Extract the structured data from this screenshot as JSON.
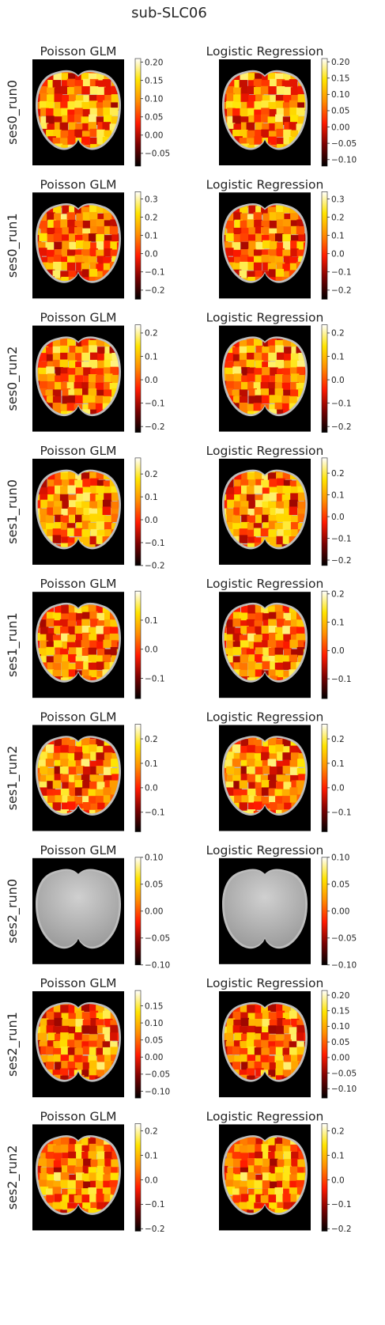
{
  "title": "sub-SLC06",
  "colors": {
    "background": "#000000",
    "cmap": [
      "#000000",
      "#7a0000",
      "#ff1a00",
      "#ff8c00",
      "#ffe400",
      "#ffffff"
    ],
    "inactive_brain": [
      "#d0d0d0",
      "#9a9a9a"
    ],
    "brain_rim": "#bdbdbd"
  },
  "chart_data": {
    "type": "heatmap",
    "title": "sub-SLC06",
    "columns": [
      "Poisson GLM",
      "Logistic Regression"
    ],
    "rows": [
      {
        "label": "ses0_run0",
        "panels": [
          {
            "title": "Poisson GLM",
            "vmin": -0.085,
            "vmax": 0.21,
            "ticks": [
              -0.05,
              0.0,
              0.05,
              0.1,
              0.15,
              0.2
            ],
            "tick_labels": [
              "−0.05",
              "0.00",
              "0.05",
              "0.10",
              "0.15",
              "0.20"
            ]
          },
          {
            "title": "Logistic Regression",
            "vmin": -0.12,
            "vmax": 0.21,
            "ticks": [
              -0.1,
              -0.05,
              0.0,
              0.05,
              0.1,
              0.15,
              0.2
            ],
            "tick_labels": [
              "−0.10",
              "−0.05",
              "0.00",
              "0.05",
              "0.10",
              "0.15",
              "0.20"
            ]
          }
        ]
      },
      {
        "label": "ses0_run1",
        "panels": [
          {
            "title": "Poisson GLM",
            "vmin": -0.25,
            "vmax": 0.34,
            "ticks": [
              -0.2,
              -0.1,
              0.0,
              0.1,
              0.2,
              0.3
            ],
            "tick_labels": [
              "−0.2",
              "−0.1",
              "0.0",
              "0.1",
              "0.2",
              "0.3"
            ]
          },
          {
            "title": "Logistic Regression",
            "vmin": -0.25,
            "vmax": 0.34,
            "ticks": [
              -0.2,
              -0.1,
              0.0,
              0.1,
              0.2,
              0.3
            ],
            "tick_labels": [
              "−0.2",
              "−0.1",
              "0.0",
              "0.1",
              "0.2",
              "0.3"
            ]
          }
        ]
      },
      {
        "label": "ses0_run2",
        "panels": [
          {
            "title": "Poisson GLM",
            "vmin": -0.225,
            "vmax": 0.235,
            "ticks": [
              -0.2,
              -0.1,
              0.0,
              0.1,
              0.2
            ],
            "tick_labels": [
              "−0.2",
              "−0.1",
              "0.0",
              "0.1",
              "0.2"
            ]
          },
          {
            "title": "Logistic Regression",
            "vmin": -0.225,
            "vmax": 0.235,
            "ticks": [
              -0.2,
              -0.1,
              0.0,
              0.1,
              0.2
            ],
            "tick_labels": [
              "−0.2",
              "−0.1",
              "0.0",
              "0.1",
              "0.2"
            ]
          }
        ]
      },
      {
        "label": "ses1_run0",
        "panels": [
          {
            "title": "Poisson GLM",
            "vmin": -0.2,
            "vmax": 0.27,
            "ticks": [
              -0.2,
              -0.1,
              0.0,
              0.1,
              0.2
            ],
            "tick_labels": [
              "−0.2",
              "−0.1",
              "0.0",
              "0.1",
              "0.2"
            ]
          },
          {
            "title": "Logistic Regression",
            "vmin": -0.225,
            "vmax": 0.27,
            "ticks": [
              -0.2,
              -0.1,
              0.0,
              0.1,
              0.2
            ],
            "tick_labels": [
              "−0.2",
              "−0.1",
              "0.0",
              "0.1",
              "0.2"
            ]
          }
        ]
      },
      {
        "label": "ses1_run1",
        "panels": [
          {
            "title": "Poisson GLM",
            "vmin": -0.17,
            "vmax": 0.2,
            "ticks": [
              -0.1,
              0.0,
              0.1
            ],
            "tick_labels": [
              "−0.1",
              "0.0",
              "0.1"
            ]
          },
          {
            "title": "Logistic Regression",
            "vmin": -0.17,
            "vmax": 0.21,
            "ticks": [
              -0.1,
              0.0,
              0.1,
              0.2
            ],
            "tick_labels": [
              "−0.1",
              "0.0",
              "0.1",
              "0.2"
            ]
          }
        ]
      },
      {
        "label": "ses1_run2",
        "panels": [
          {
            "title": "Poisson GLM",
            "vmin": -0.18,
            "vmax": 0.26,
            "ticks": [
              -0.1,
              0.0,
              0.1,
              0.2
            ],
            "tick_labels": [
              "−0.1",
              "0.0",
              "0.1",
              "0.2"
            ]
          },
          {
            "title": "Logistic Regression",
            "vmin": -0.18,
            "vmax": 0.26,
            "ticks": [
              -0.1,
              0.0,
              0.1,
              0.2
            ],
            "tick_labels": [
              "−0.1",
              "0.0",
              "0.1",
              "0.2"
            ]
          }
        ]
      },
      {
        "label": "ses2_run0",
        "panels": [
          {
            "title": "Poisson GLM",
            "vmin": -0.1,
            "vmax": 0.1,
            "inactive": true,
            "ticks": [
              -0.1,
              -0.05,
              0.0,
              0.05,
              0.1
            ],
            "tick_labels": [
              "−0.10",
              "−0.05",
              "0.00",
              "0.05",
              "0.10"
            ]
          },
          {
            "title": "Logistic Regression",
            "vmin": -0.1,
            "vmax": 0.1,
            "inactive": true,
            "ticks": [
              -0.1,
              -0.05,
              0.0,
              0.05,
              0.1
            ],
            "tick_labels": [
              "−0.10",
              "−0.05",
              "0.00",
              "0.05",
              "0.10"
            ]
          }
        ]
      },
      {
        "label": "ses2_run1",
        "panels": [
          {
            "title": "Poisson GLM",
            "vmin": -0.12,
            "vmax": 0.195,
            "ticks": [
              -0.1,
              -0.05,
              0.0,
              0.05,
              0.1,
              0.15
            ],
            "tick_labels": [
              "−0.10",
              "−0.05",
              "0.00",
              "0.05",
              "0.10",
              "0.15"
            ]
          },
          {
            "title": "Logistic Regression",
            "vmin": -0.13,
            "vmax": 0.215,
            "ticks": [
              -0.1,
              -0.05,
              0.0,
              0.05,
              0.1,
              0.15,
              0.2
            ],
            "tick_labels": [
              "−0.10",
              "−0.05",
              "0.00",
              "0.05",
              "0.10",
              "0.15",
              "0.20"
            ]
          }
        ]
      },
      {
        "label": "ses2_run2",
        "panels": [
          {
            "title": "Poisson GLM",
            "vmin": -0.21,
            "vmax": 0.23,
            "ticks": [
              -0.2,
              -0.1,
              0.0,
              0.1,
              0.2
            ],
            "tick_labels": [
              "−0.2",
              "−0.1",
              "0.0",
              "0.1",
              "0.2"
            ]
          },
          {
            "title": "Logistic Regression",
            "vmin": -0.21,
            "vmax": 0.23,
            "ticks": [
              -0.2,
              -0.1,
              0.0,
              0.1,
              0.2
            ],
            "tick_labels": [
              "−0.2",
              "−0.1",
              "0.0",
              "0.1",
              "0.2"
            ]
          }
        ]
      }
    ]
  }
}
